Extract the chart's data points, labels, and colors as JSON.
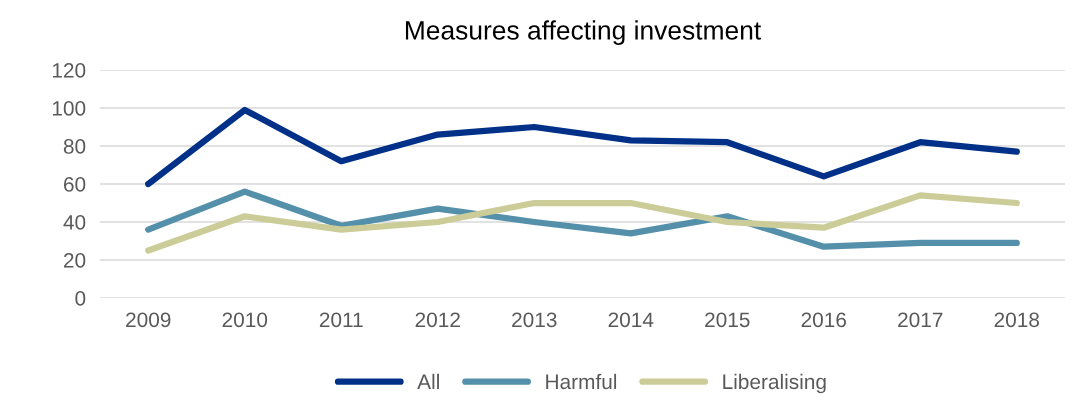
{
  "chart_data": {
    "type": "line",
    "title": "Measures affecting investment",
    "categories": [
      "2009",
      "2010",
      "2011",
      "2012",
      "2013",
      "2014",
      "2015",
      "2016",
      "2017",
      "2018"
    ],
    "series": [
      {
        "name": "All",
        "color": "#003087",
        "values": [
          60,
          99,
          72,
          86,
          90,
          83,
          82,
          64,
          82,
          77
        ]
      },
      {
        "name": "Harmful",
        "color": "#5590aa",
        "values": [
          36,
          56,
          38,
          47,
          40,
          34,
          43,
          27,
          29,
          29
        ]
      },
      {
        "name": "Liberalising",
        "color": "#cccc99",
        "values": [
          25,
          43,
          36,
          40,
          50,
          50,
          40,
          37,
          54,
          50
        ]
      }
    ],
    "ylim": [
      0,
      120
    ],
    "yticks": [
      0,
      20,
      40,
      60,
      80,
      100,
      120
    ],
    "grid": "y",
    "legend": "bottom",
    "marker": "none",
    "line_style": "solid"
  }
}
